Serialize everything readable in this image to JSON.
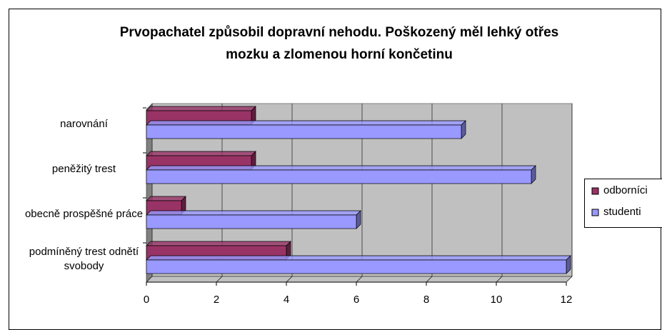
{
  "chart_data": {
    "type": "bar",
    "orientation": "horizontal",
    "title": "Prvopachatel způsobil dopravní nehodu. Poškozený měl lehký otřes mozku a zlomenou horní končetinu",
    "categories": [
      "narovnání",
      "peněžitý trest",
      "obecně prospěšné práce",
      "podmíněný trest odnětí svobody"
    ],
    "series": [
      {
        "name": "odborníci",
        "color": "#993366",
        "values": [
          3,
          3,
          1,
          4
        ]
      },
      {
        "name": "studenti",
        "color": "#9999ff",
        "values": [
          9,
          11,
          6,
          12
        ]
      }
    ],
    "xlim": [
      0,
      12
    ],
    "xticks": [
      0,
      2,
      4,
      6,
      8,
      10,
      12
    ],
    "grid": true,
    "legend": "right"
  }
}
